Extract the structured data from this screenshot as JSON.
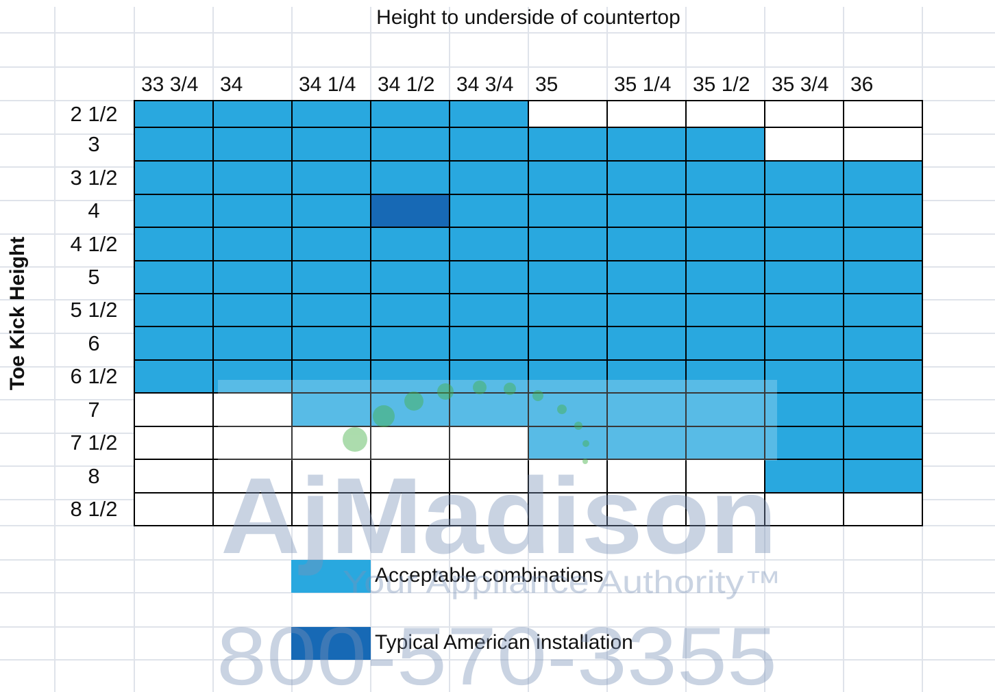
{
  "chart_data": {
    "type": "table",
    "title": "Height to underside of countertop",
    "ylabel": "Toe Kick Height",
    "columns": [
      "33 3/4",
      "34",
      "34 1/4",
      "34 1/2",
      "34 3/4",
      "35",
      "35 1/4",
      "35 1/2",
      "35 3/4",
      "36"
    ],
    "rows": [
      "2 1/2",
      "3",
      "3 1/2",
      "4",
      "4 1/2",
      "5",
      "5 1/2",
      "6",
      "6 1/2",
      "7",
      "7 1/2",
      "8",
      "8 1/2"
    ],
    "cells": [
      [
        1,
        1,
        1,
        1,
        1,
        0,
        0,
        0,
        0,
        0
      ],
      [
        1,
        1,
        1,
        1,
        1,
        1,
        1,
        1,
        0,
        0
      ],
      [
        1,
        1,
        1,
        1,
        1,
        1,
        1,
        1,
        1,
        1
      ],
      [
        1,
        1,
        1,
        2,
        1,
        1,
        1,
        1,
        1,
        1
      ],
      [
        1,
        1,
        1,
        1,
        1,
        1,
        1,
        1,
        1,
        1
      ],
      [
        1,
        1,
        1,
        1,
        1,
        1,
        1,
        1,
        1,
        1
      ],
      [
        1,
        1,
        1,
        1,
        1,
        1,
        1,
        1,
        1,
        1
      ],
      [
        1,
        1,
        1,
        1,
        1,
        1,
        1,
        1,
        1,
        1
      ],
      [
        1,
        1,
        1,
        1,
        1,
        1,
        1,
        1,
        1,
        1
      ],
      [
        0,
        0,
        1,
        1,
        1,
        1,
        1,
        1,
        1,
        1
      ],
      [
        0,
        0,
        0,
        0,
        0,
        1,
        1,
        1,
        1,
        1
      ],
      [
        0,
        0,
        0,
        0,
        0,
        0,
        0,
        0,
        1,
        1
      ],
      [
        0,
        0,
        0,
        0,
        0,
        0,
        0,
        0,
        0,
        0
      ]
    ],
    "legend": [
      {
        "label": "Acceptable combinations",
        "color": "#29a8df"
      },
      {
        "label": "Typical American installation",
        "color": "#1769b5"
      }
    ],
    "colors": {
      "empty": "#ffffff",
      "acceptable": "#29a8df",
      "typical": "#1769b5"
    }
  },
  "watermark": {
    "brand": "AjMadison",
    "tagline": "Your Appliance Authority™",
    "phone": "800-570-3355"
  }
}
